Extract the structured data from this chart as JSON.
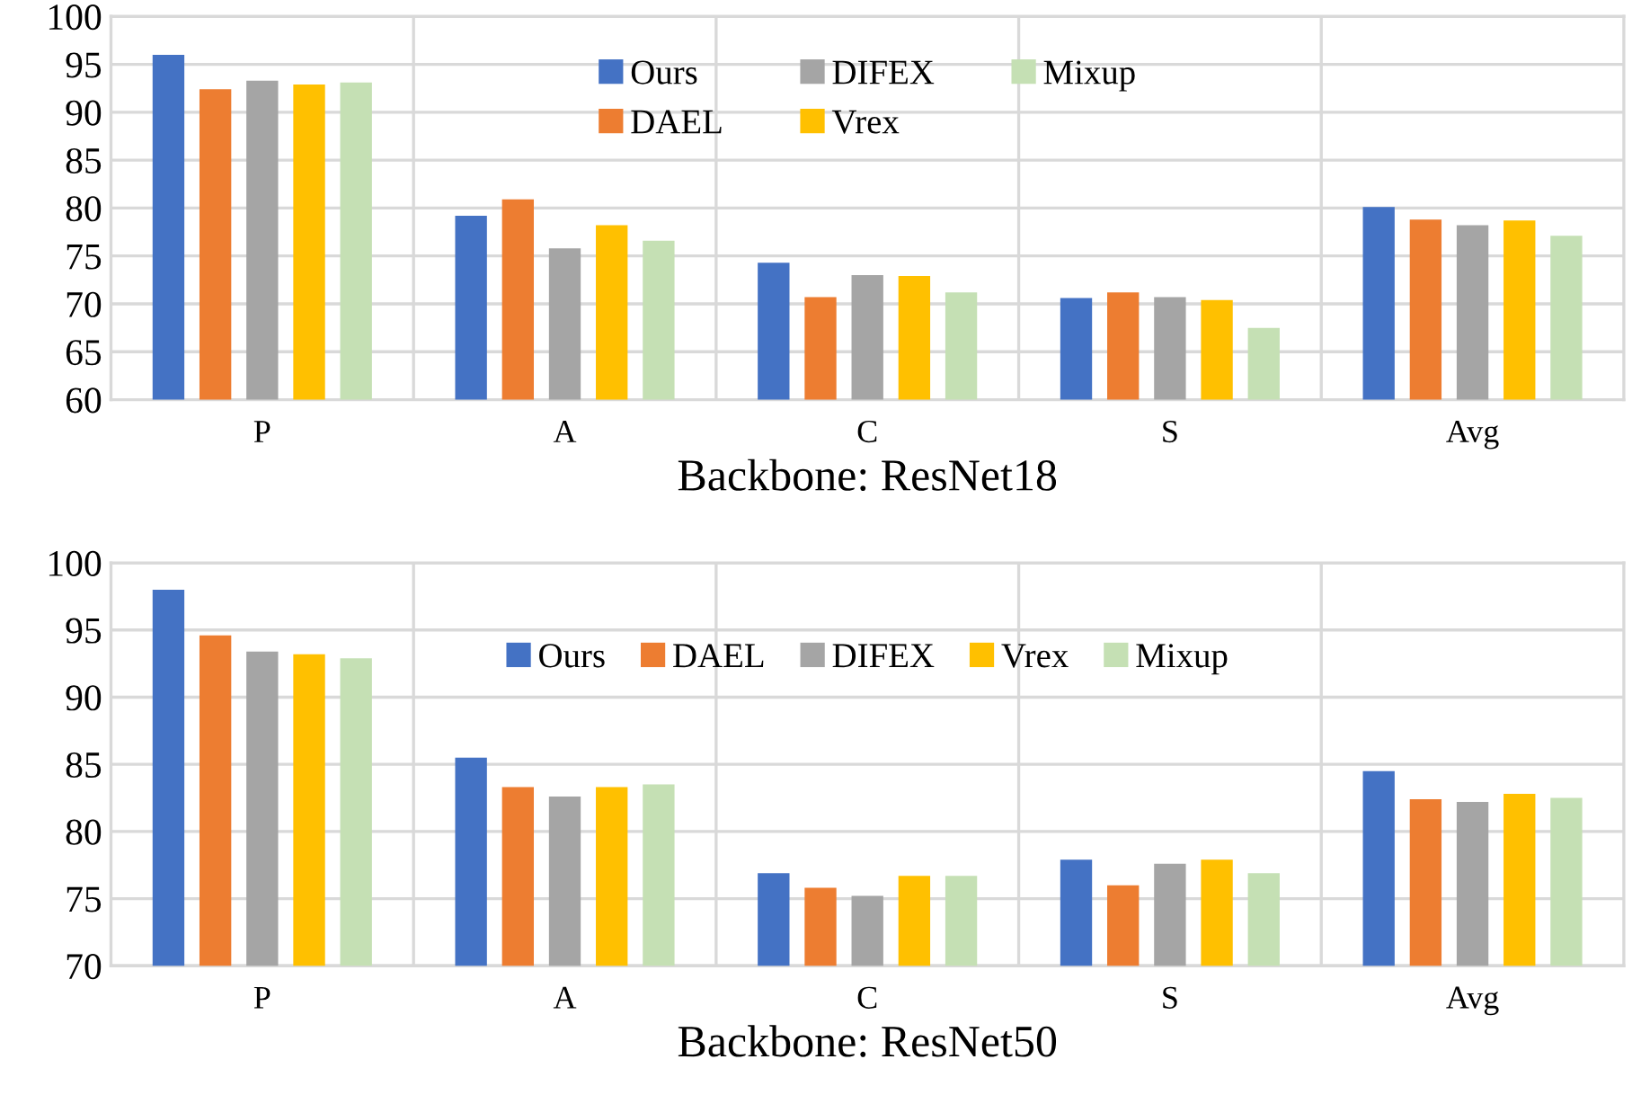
{
  "chart_data": [
    {
      "type": "bar",
      "xlabel": "Backbone: ResNet18",
      "categories": [
        "P",
        "A",
        "C",
        "S",
        "Avg"
      ],
      "series": [
        {
          "name": "Ours",
          "color": "#4472c4",
          "values": [
            96.0,
            79.2,
            74.3,
            70.6,
            80.1
          ]
        },
        {
          "name": "DAEL",
          "color": "#ed7d31",
          "values": [
            92.4,
            80.9,
            70.7,
            71.2,
            78.8
          ]
        },
        {
          "name": "DIFEX",
          "color": "#a5a5a5",
          "values": [
            93.3,
            75.8,
            73.0,
            70.7,
            78.2
          ]
        },
        {
          "name": "Vrex",
          "color": "#ffc000",
          "values": [
            92.9,
            78.2,
            72.9,
            70.4,
            78.7
          ]
        },
        {
          "name": "Mixup",
          "color": "#c5e0b4",
          "values": [
            93.1,
            76.6,
            71.2,
            67.5,
            77.1
          ]
        }
      ],
      "ylim": [
        60,
        100
      ],
      "yticks": [
        60,
        65,
        70,
        75,
        80,
        85,
        90,
        95,
        100
      ],
      "grid": true,
      "legend": "top"
    },
    {
      "type": "bar",
      "xlabel": "Backbone: ResNet50",
      "categories": [
        "P",
        "A",
        "C",
        "S",
        "Avg"
      ],
      "series": [
        {
          "name": "Ours",
          "color": "#4472c4",
          "values": [
            98.0,
            85.5,
            76.9,
            77.9,
            84.5
          ]
        },
        {
          "name": "DAEL",
          "color": "#ed7d31",
          "values": [
            94.6,
            83.3,
            75.8,
            76.0,
            82.4
          ]
        },
        {
          "name": "DIFEX",
          "color": "#a5a5a5",
          "values": [
            93.4,
            82.6,
            75.2,
            77.6,
            82.2
          ]
        },
        {
          "name": "Vrex",
          "color": "#ffc000",
          "values": [
            93.2,
            83.3,
            76.7,
            77.9,
            82.8
          ]
        },
        {
          "name": "Mixup",
          "color": "#c5e0b4",
          "values": [
            92.9,
            83.5,
            76.7,
            76.9,
            82.5
          ]
        }
      ],
      "ylim": [
        70,
        100
      ],
      "yticks": [
        70,
        75,
        80,
        85,
        90,
        95,
        100
      ],
      "grid": true,
      "legend": "top"
    }
  ]
}
